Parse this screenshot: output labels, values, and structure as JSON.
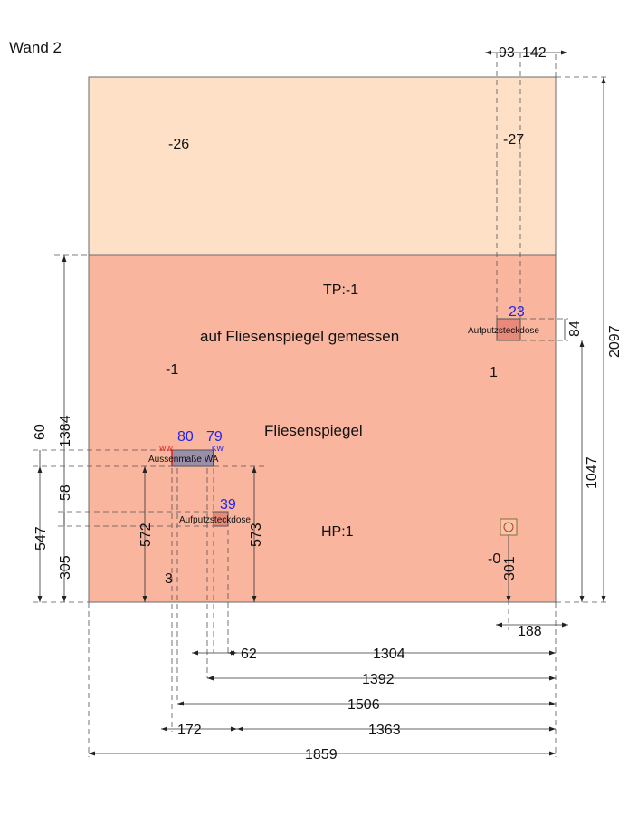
{
  "title": "Wand 2",
  "colors": {
    "upper_panel": "#fde0c5",
    "tile_area": "#f9b59e",
    "outlet": "#e8897a",
    "window": "#9a8fa8",
    "blue": "#2323e8",
    "red": "#e02020"
  },
  "upper": {
    "left_value": "-26",
    "right_value": "-27"
  },
  "tile_area": {
    "tp": "TP:-1",
    "measured_note": "auf Fliesenspiegel gemessen",
    "left_value": "-1",
    "right_value": "1",
    "name": "Fliesenspiegel",
    "hp": "HP:1",
    "bottom_left_value": "3",
    "bottom_right_value": "-0"
  },
  "objects": {
    "outlet_top": {
      "label": "Aufputzsteckdose",
      "height_value": "23"
    },
    "window": {
      "label": "Aussenmaße WA",
      "left_value": "80",
      "right_value": "79",
      "ww": "WW",
      "kw": "KW"
    },
    "outlet_bottom": {
      "label": "Aufputzsteckdose",
      "height_value": "39"
    }
  },
  "dims": {
    "top_93": "93",
    "top_142": "142",
    "right_84": "84",
    "right_2097": "2097",
    "right_1047": "1047",
    "left_1384": "1384",
    "left_60": "60",
    "left_58": "58",
    "left_547": "547",
    "left_305": "305",
    "v_572": "572",
    "v_573": "573",
    "v_301": "301",
    "b_188": "188",
    "b_62": "62",
    "b_1304": "1304",
    "b_1392": "1392",
    "b_1506": "1506",
    "b_172": "172",
    "b_1363": "1363",
    "b_1859": "1859"
  }
}
